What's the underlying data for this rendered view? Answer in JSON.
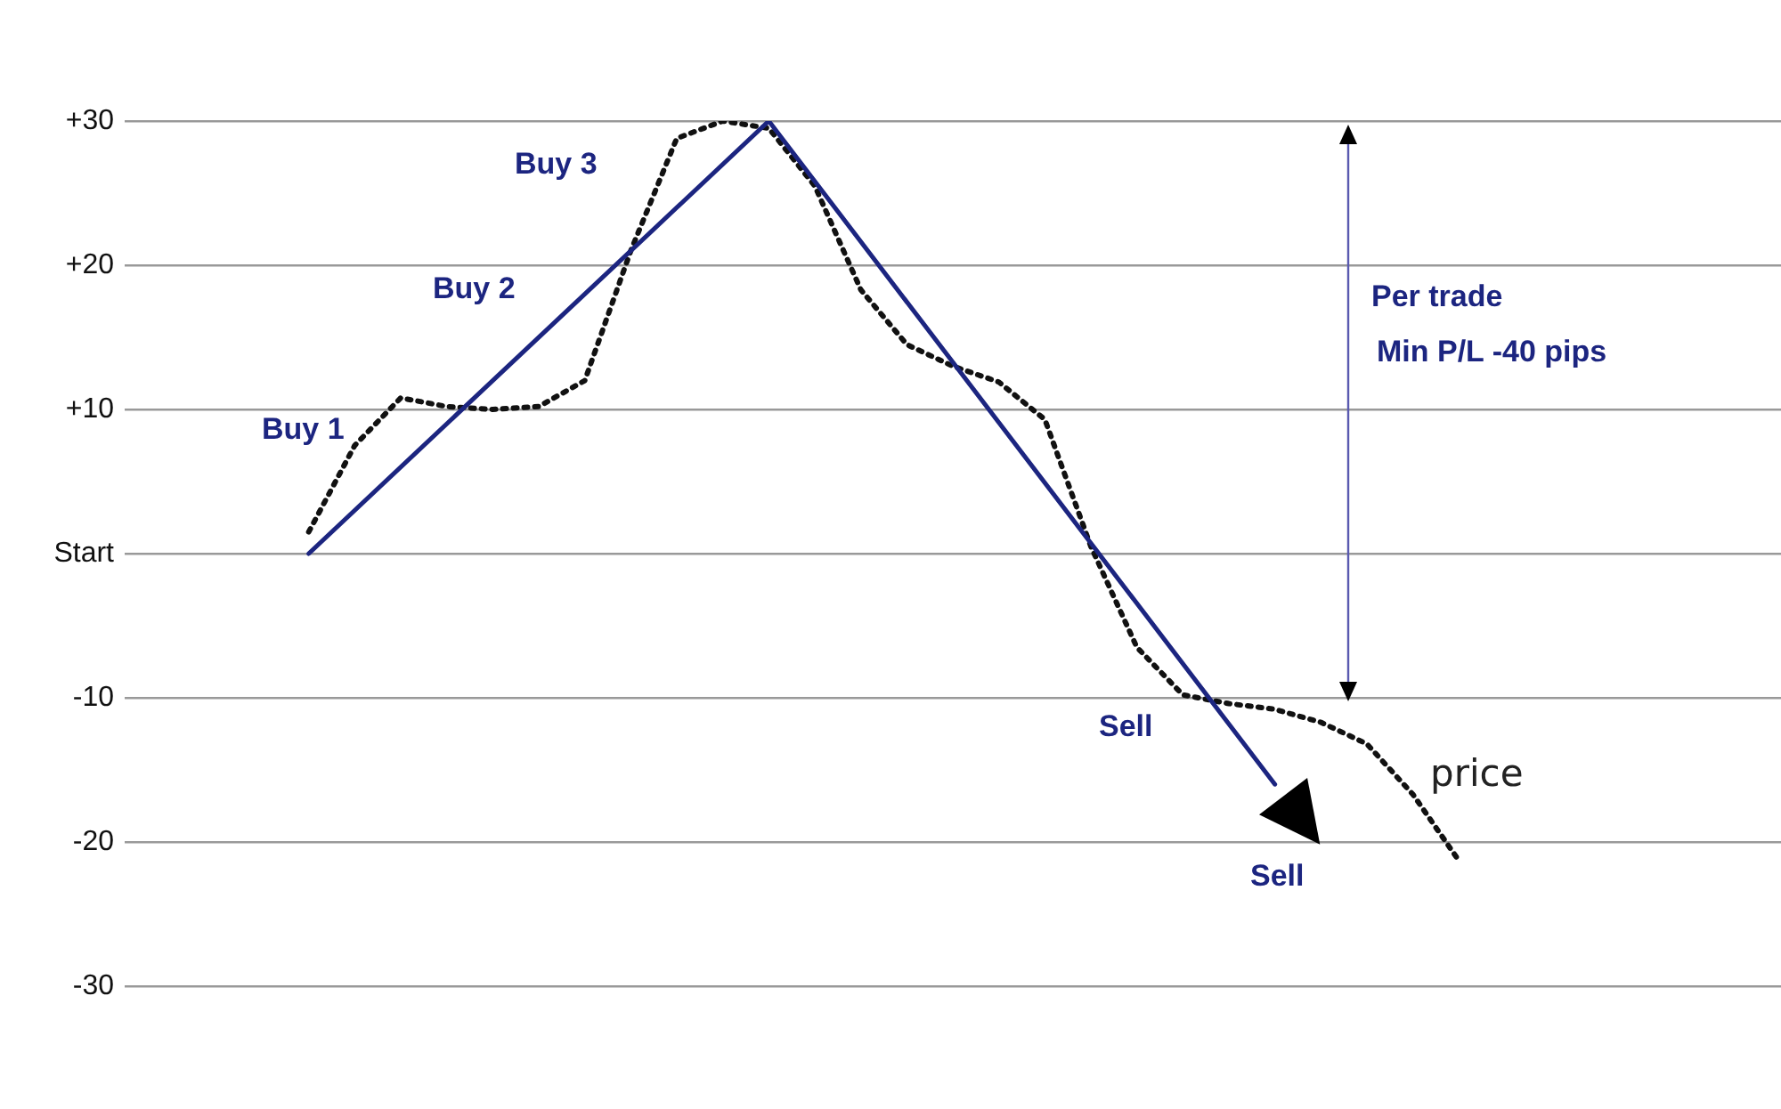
{
  "chart_data": {
    "type": "line",
    "ylim": [
      -30,
      30
    ],
    "yticks": [
      {
        "value": 30,
        "label": "+30"
      },
      {
        "value": 20,
        "label": "+20"
      },
      {
        "value": 10,
        "label": "+10"
      },
      {
        "value": 0,
        "label": "Start"
      },
      -10,
      -20,
      -30
    ],
    "tick_labels": "y",
    "grid": "y",
    "legend": false,
    "marker": "none",
    "categories": [
      null,
      null,
      null,
      null,
      null,
      null,
      null,
      null,
      null,
      null,
      null,
      null,
      null,
      null,
      null,
      null,
      null,
      null,
      null,
      null,
      null,
      null,
      null,
      null,
      null,
      null,
      null,
      null,
      null,
      null,
      null,
      null,
      null,
      null,
      null,
      null,
      null
    ],
    "series": [
      {
        "color": "#1c2580",
        "line_style": "solid",
        "values": [
          null,
          null,
          null,
          null,
          0,
          null,
          null,
          null,
          null,
          null,
          null,
          null,
          null,
          null,
          30,
          null,
          null,
          null,
          null,
          null,
          null,
          null,
          null,
          null,
          null,
          -16,
          null,
          null,
          null,
          null,
          null,
          null,
          null,
          null,
          null,
          null,
          null
        ]
      },
      {
        "name": "price",
        "color": "#111111",
        "line_style": "dotted",
        "values": [
          null,
          null,
          null,
          null,
          1.5,
          7.5,
          10.8,
          10.2,
          10,
          10.2,
          12,
          21,
          28.8,
          30,
          29.5,
          25.5,
          18.3,
          14.5,
          13,
          11.9,
          9.3,
          0.5,
          -6.5,
          -9.8,
          -10.4,
          -10.8,
          -11.7,
          -13.2,
          -16.7,
          -21.3,
          null,
          null,
          null,
          null,
          null,
          null,
          null
        ]
      }
    ],
    "annotations": [
      "Buy 1",
      "Buy 2",
      "Buy 3",
      "Sell",
      "Sell",
      "Per trade\nMin P/L -40 pips"
    ]
  }
}
